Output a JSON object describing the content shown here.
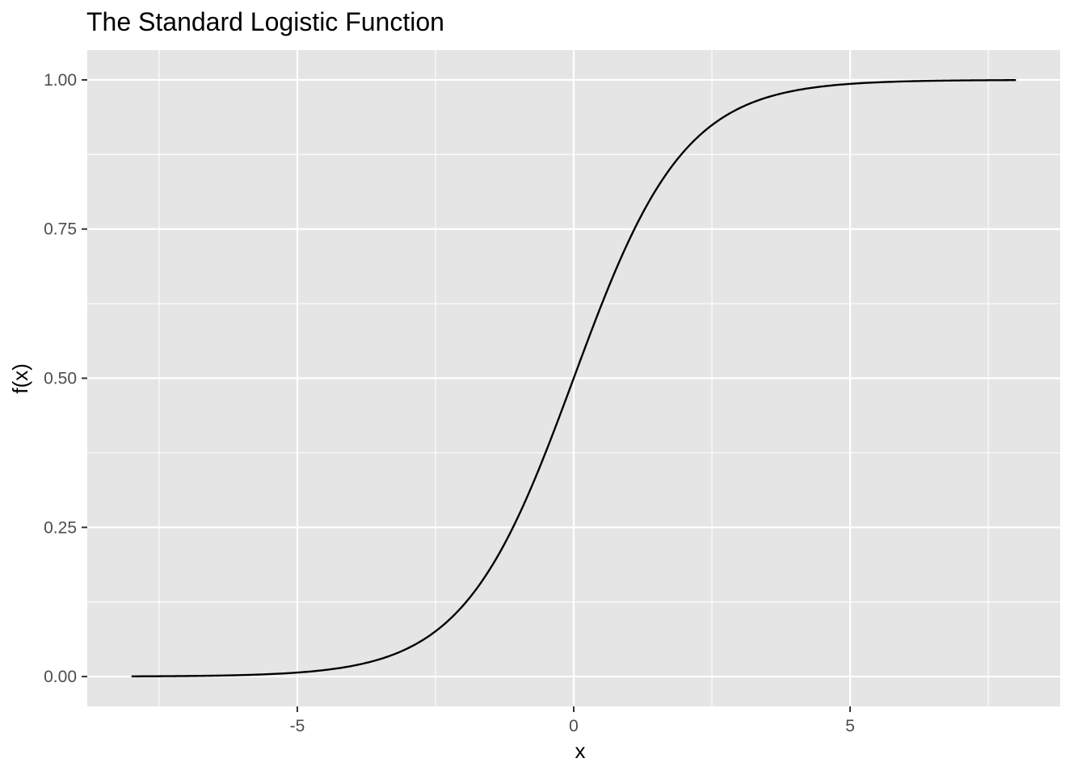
{
  "chart_data": {
    "type": "line",
    "title": "The Standard Logistic Function",
    "xlabel": "x",
    "ylabel": "f(x)",
    "function": "1 / (1 + exp(-x))",
    "x_range": [
      -8,
      8
    ],
    "xlim": [
      -8.8,
      8.8
    ],
    "ylim": [
      -0.05,
      1.05
    ],
    "x_ticks": [
      -5,
      0,
      5
    ],
    "x_tick_labels": [
      "-5",
      "0",
      "5"
    ],
    "x_minor_ticks": [
      -7.5,
      -2.5,
      2.5,
      7.5
    ],
    "y_ticks": [
      0,
      0.25,
      0.5,
      0.75,
      1
    ],
    "y_tick_labels": [
      "0.00",
      "0.25",
      "0.50",
      "0.75",
      "1.00"
    ],
    "y_minor_ticks": [
      0.125,
      0.375,
      0.625,
      0.875
    ],
    "grid": true,
    "legend": "none",
    "series": [
      {
        "color": "#000000",
        "x": [
          -8,
          -7,
          -6,
          -5,
          -4,
          -3.5,
          -3,
          -2.5,
          -2,
          -1.5,
          -1,
          -0.5,
          0,
          0.5,
          1,
          1.5,
          2,
          2.5,
          3,
          3.5,
          4,
          5,
          6,
          7,
          8
        ],
        "y": [
          0.0003,
          0.0009,
          0.0025,
          0.0067,
          0.018,
          0.0293,
          0.0474,
          0.0759,
          0.1192,
          0.1824,
          0.2689,
          0.3775,
          0.5,
          0.6225,
          0.7311,
          0.8176,
          0.8808,
          0.9241,
          0.9526,
          0.9707,
          0.982,
          0.9933,
          0.9975,
          0.9991,
          0.9997
        ]
      }
    ],
    "colors": {
      "panel_background": "#e5e5e5",
      "grid": "#ffffff",
      "tick": "#333333"
    }
  }
}
